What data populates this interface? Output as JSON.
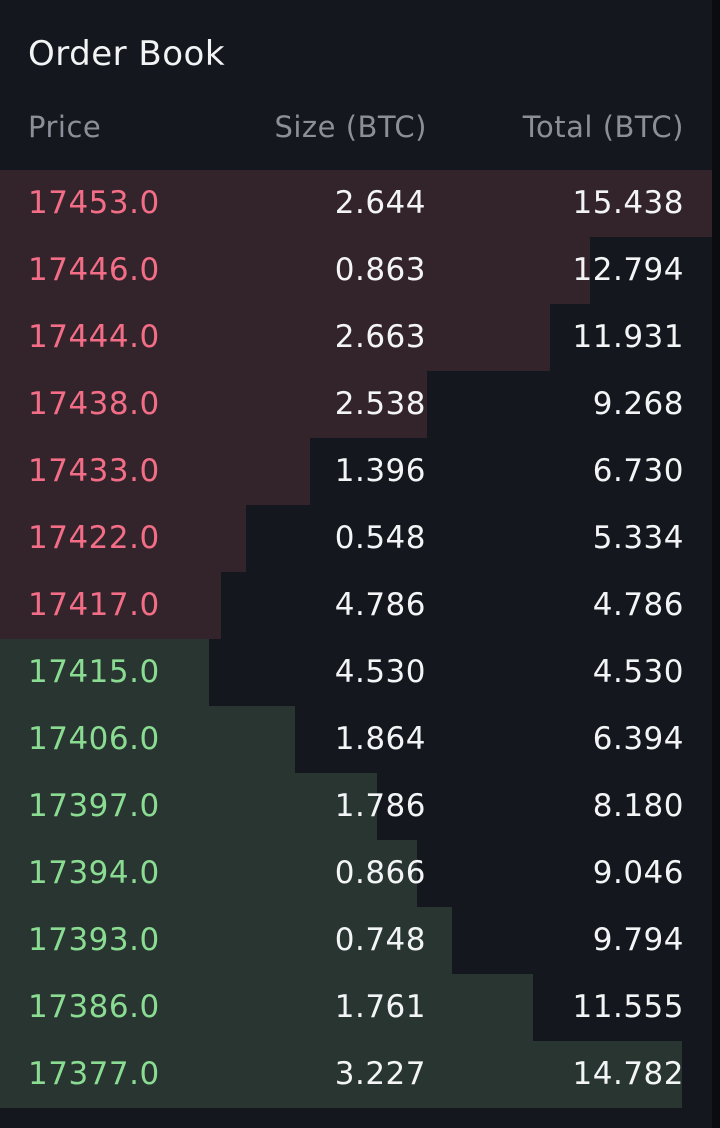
{
  "title": "Order Book",
  "headers": {
    "price": "Price",
    "size": "Size (BTC)",
    "total": "Total (BTC)"
  },
  "colors": {
    "background": "#14171d",
    "ask_text": "#f36d86",
    "bid_text": "#8bdc93",
    "ask_depth": "#33242c",
    "bid_depth": "#283530",
    "header_text": "#8a8f98",
    "value_text": "#f3f4f6"
  },
  "asks": [
    {
      "price": "17453.0",
      "size": "2.644",
      "total": "15.438"
    },
    {
      "price": "17446.0",
      "size": "0.863",
      "total": "12.794"
    },
    {
      "price": "17444.0",
      "size": "2.663",
      "total": "11.931"
    },
    {
      "price": "17438.0",
      "size": "2.538",
      "total": "9.268"
    },
    {
      "price": "17433.0",
      "size": "1.396",
      "total": "6.730"
    },
    {
      "price": "17422.0",
      "size": "0.548",
      "total": "5.334"
    },
    {
      "price": "17417.0",
      "size": "4.786",
      "total": "4.786"
    }
  ],
  "bids": [
    {
      "price": "17415.0",
      "size": "4.530",
      "total": "4.530"
    },
    {
      "price": "17406.0",
      "size": "1.864",
      "total": "6.394"
    },
    {
      "price": "17397.0",
      "size": "1.786",
      "total": "8.180"
    },
    {
      "price": "17394.0",
      "size": "0.866",
      "total": "9.046"
    },
    {
      "price": "17393.0",
      "size": "0.748",
      "total": "9.794"
    },
    {
      "price": "17386.0",
      "size": "1.761",
      "total": "11.555"
    },
    {
      "price": "17377.0",
      "size": "3.227",
      "total": "14.782"
    }
  ]
}
